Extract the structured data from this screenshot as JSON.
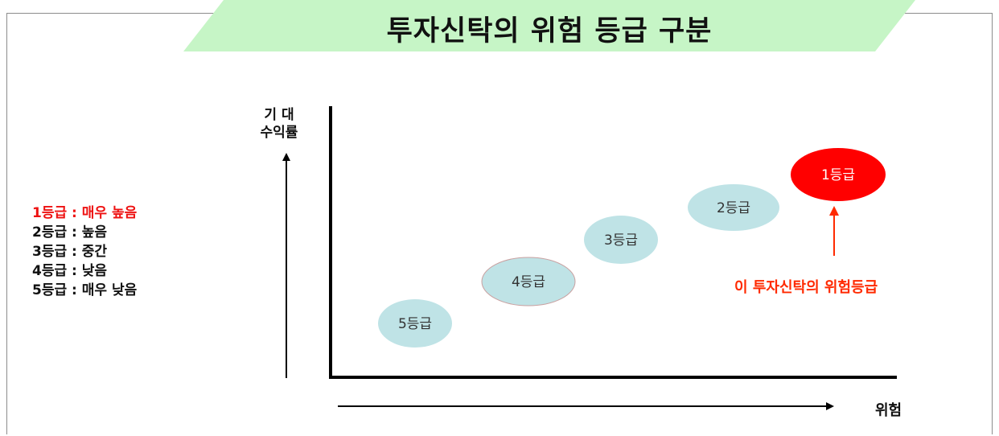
{
  "title": "투자신탁의 위험 등급 구분",
  "legend": [
    {
      "text": "1등급 : 매우 높음",
      "highlight": true
    },
    {
      "text": "2등급 : 높음",
      "highlight": false
    },
    {
      "text": "3등급 : 중간",
      "highlight": false
    },
    {
      "text": "4등급 : 낮음",
      "highlight": false
    },
    {
      "text": "5등급 : 매우 낮음",
      "highlight": false
    }
  ],
  "axes": {
    "y_label_line1": "기 대",
    "y_label_line2": "수익률",
    "x_label": "위험"
  },
  "grades": [
    {
      "label": "5등급",
      "rank": 5,
      "fill": "#bfe3e6",
      "text_color": "#333333"
    },
    {
      "label": "4등급",
      "rank": 4,
      "fill": "#bfe3e6",
      "text_color": "#333333"
    },
    {
      "label": "3등급",
      "rank": 3,
      "fill": "#bfe3e6",
      "text_color": "#333333"
    },
    {
      "label": "2등급",
      "rank": 2,
      "fill": "#bfe3e6",
      "text_color": "#333333"
    },
    {
      "label": "1등급",
      "rank": 1,
      "fill": "#ff0000",
      "text_color": "#ffffff"
    }
  ],
  "callout": "이 투자신탁의 위험등급",
  "colors": {
    "banner": "#c6f5c6",
    "highlight": "#ee1111",
    "callout": "#ff2a00"
  }
}
